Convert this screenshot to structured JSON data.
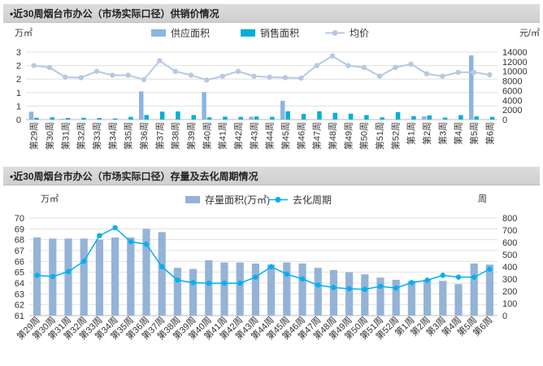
{
  "colors": {
    "supply": "#8db4e2",
    "sales": "#00b0d8",
    "price": "#b7c9e2",
    "stock": "#95b3d7",
    "cycle": "#00b0f0",
    "grid": "#e0e0e0"
  },
  "chart_data": [
    {
      "type": "bar",
      "title": "•近30周烟台市办公（市场实际口径）供销价情况",
      "ylabel": "万㎡",
      "y2label": "元/㎡",
      "ylim": [
        0,
        3
      ],
      "y_ticks": [
        "0",
        "1",
        "1",
        "2",
        "2",
        "3"
      ],
      "y2lim": [
        0,
        14000
      ],
      "y2_ticks": [
        "0",
        "2000",
        "4000",
        "6000",
        "8000",
        "10000",
        "12000",
        "14000"
      ],
      "categories": [
        "第29周",
        "第30周",
        "第31周",
        "第32周",
        "第33周",
        "第34周",
        "第35周",
        "第36周",
        "第37周",
        "第38周",
        "第39周",
        "第40周",
        "第41周",
        "第42周",
        "第43周",
        "第44周",
        "第45周",
        "第46周",
        "第47周",
        "第48周",
        "第49周",
        "第50周",
        "第51周",
        "第52周",
        "第1周",
        "第2周",
        "第3周",
        "第4周",
        "第5周",
        "第6周"
      ],
      "series": [
        {
          "name": "供应面积",
          "type": "bar",
          "axis": "left",
          "values": [
            0.35,
            0,
            0.03,
            0,
            0,
            0,
            0,
            1.25,
            0,
            0,
            0,
            1.22,
            0,
            0,
            0.13,
            0,
            0.83,
            0,
            0,
            0,
            0,
            0,
            0,
            0,
            0,
            0.14,
            0,
            0,
            2.85,
            0
          ]
        },
        {
          "name": "销售面积",
          "type": "bar",
          "axis": "left",
          "values": [
            0.08,
            0.1,
            0.07,
            0.08,
            0.07,
            0.05,
            0.12,
            0.2,
            0.35,
            0.36,
            0.2,
            0.1,
            0.13,
            0.12,
            0.14,
            0.12,
            0.37,
            0.25,
            0.37,
            0.3,
            0.26,
            0.2,
            0.1,
            0.33,
            0.15,
            0.18,
            0.09,
            0.2,
            0.14,
            0.12
          ]
        },
        {
          "name": "均价",
          "type": "line",
          "axis": "right",
          "values": [
            11200,
            10800,
            8800,
            8700,
            10000,
            9200,
            9200,
            8300,
            12200,
            10000,
            9200,
            8200,
            9000,
            10000,
            9000,
            8800,
            8700,
            8600,
            11200,
            13200,
            11200,
            10800,
            9000,
            10800,
            11500,
            9500,
            9000,
            9800,
            9800,
            9300
          ]
        }
      ],
      "legend": "top"
    },
    {
      "type": "bar",
      "title": "•近30周烟台市办公（市场实际口径）存量及去化周期情况",
      "ylabel": "万㎡",
      "y2label": "周",
      "ylim": [
        61,
        70
      ],
      "y_ticks": [
        "61",
        "62",
        "63",
        "64",
        "65",
        "66",
        "67",
        "68",
        "69",
        "70"
      ],
      "y2lim": [
        0,
        800
      ],
      "y2_ticks": [
        "0",
        "100",
        "200",
        "300",
        "400",
        "500",
        "600",
        "700",
        "800"
      ],
      "categories": [
        "第29周",
        "第30周",
        "第31周",
        "第32周",
        "第33周",
        "第34周",
        "第35周",
        "第36周",
        "第37周",
        "第38周",
        "第39周",
        "第40周",
        "第41周",
        "第42周",
        "第43周",
        "第44周",
        "第45周",
        "第46周",
        "第47周",
        "第48周",
        "第49周",
        "第50周",
        "第51周",
        "第52周",
        "第1周",
        "第2周",
        "第3周",
        "第4周",
        "第5周",
        "第6周"
      ],
      "series": [
        {
          "name": "存量面积(万㎡)",
          "type": "bar",
          "axis": "left",
          "values": [
            68.2,
            68.1,
            68.1,
            68.1,
            68.0,
            68.2,
            68.2,
            69.0,
            68.7,
            65.4,
            65.3,
            66.1,
            65.9,
            65.9,
            65.8,
            65.7,
            65.9,
            65.8,
            65.4,
            65.2,
            65.0,
            64.8,
            64.5,
            64.3,
            64.2,
            64.3,
            64.2,
            63.9,
            65.8,
            65.7
          ]
        },
        {
          "name": "去化周期",
          "type": "line",
          "axis": "right",
          "values": [
            330,
            320,
            360,
            445,
            655,
            720,
            605,
            585,
            400,
            290,
            270,
            265,
            265,
            265,
            315,
            400,
            340,
            300,
            250,
            230,
            220,
            215,
            240,
            225,
            270,
            290,
            330,
            315,
            315,
            380
          ]
        }
      ],
      "legend": "top"
    }
  ]
}
